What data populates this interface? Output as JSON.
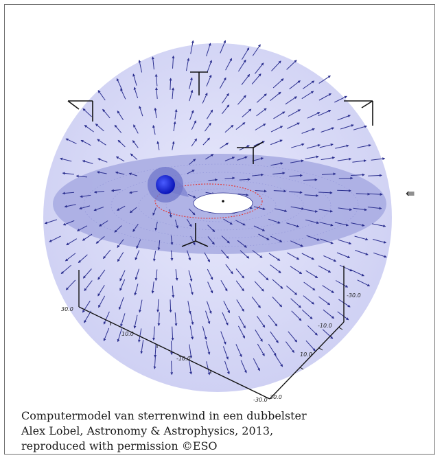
{
  "figure": {
    "axis_ticks": [
      "30.0",
      "10.0",
      "-10.0",
      "-30.0",
      "-30.0",
      "-10.0",
      "10.0",
      "30.0"
    ],
    "side_glyph": "⇚",
    "colors": {
      "sphere": "#c9cbf3",
      "disk": "#a5a8e0",
      "arrow": "#2b2f8f",
      "star": "#0a14c8",
      "orbit": "#e23a3a",
      "axes": "#111111"
    }
  },
  "caption": {
    "line1": "Computermodel van sterrenwind in een dubbelster",
    "line2": "Alex Lobel, Astronomy & Astrophysics, 2013,",
    "line3": "reproduced with permission ©ESO"
  }
}
